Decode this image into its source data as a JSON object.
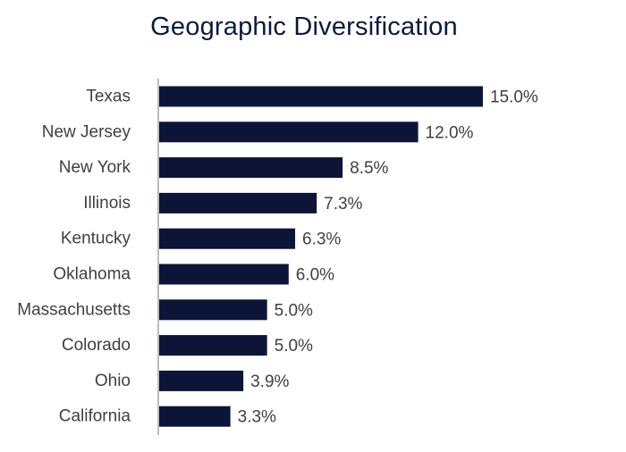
{
  "chart_data": {
    "type": "bar",
    "orientation": "horizontal",
    "title": "Geographic Diversification",
    "categories": [
      "Texas",
      "New Jersey",
      "New York",
      "Illinois",
      "Kentucky",
      "Oklahoma",
      "Massachusetts",
      "Colorado",
      "Ohio",
      "California"
    ],
    "values": [
      15.0,
      12.0,
      8.5,
      7.3,
      6.3,
      6.0,
      5.0,
      5.0,
      3.9,
      3.3
    ],
    "value_labels": [
      "15.0%",
      "12.0%",
      "8.5%",
      "7.3%",
      "6.3%",
      "6.0%",
      "5.0%",
      "5.0%",
      "3.9%",
      "3.3%"
    ],
    "xlabel": "",
    "ylabel": "",
    "grid": false,
    "legend": "none",
    "bar_color": "#0c1538",
    "axis_color": "#a6a6a6"
  }
}
